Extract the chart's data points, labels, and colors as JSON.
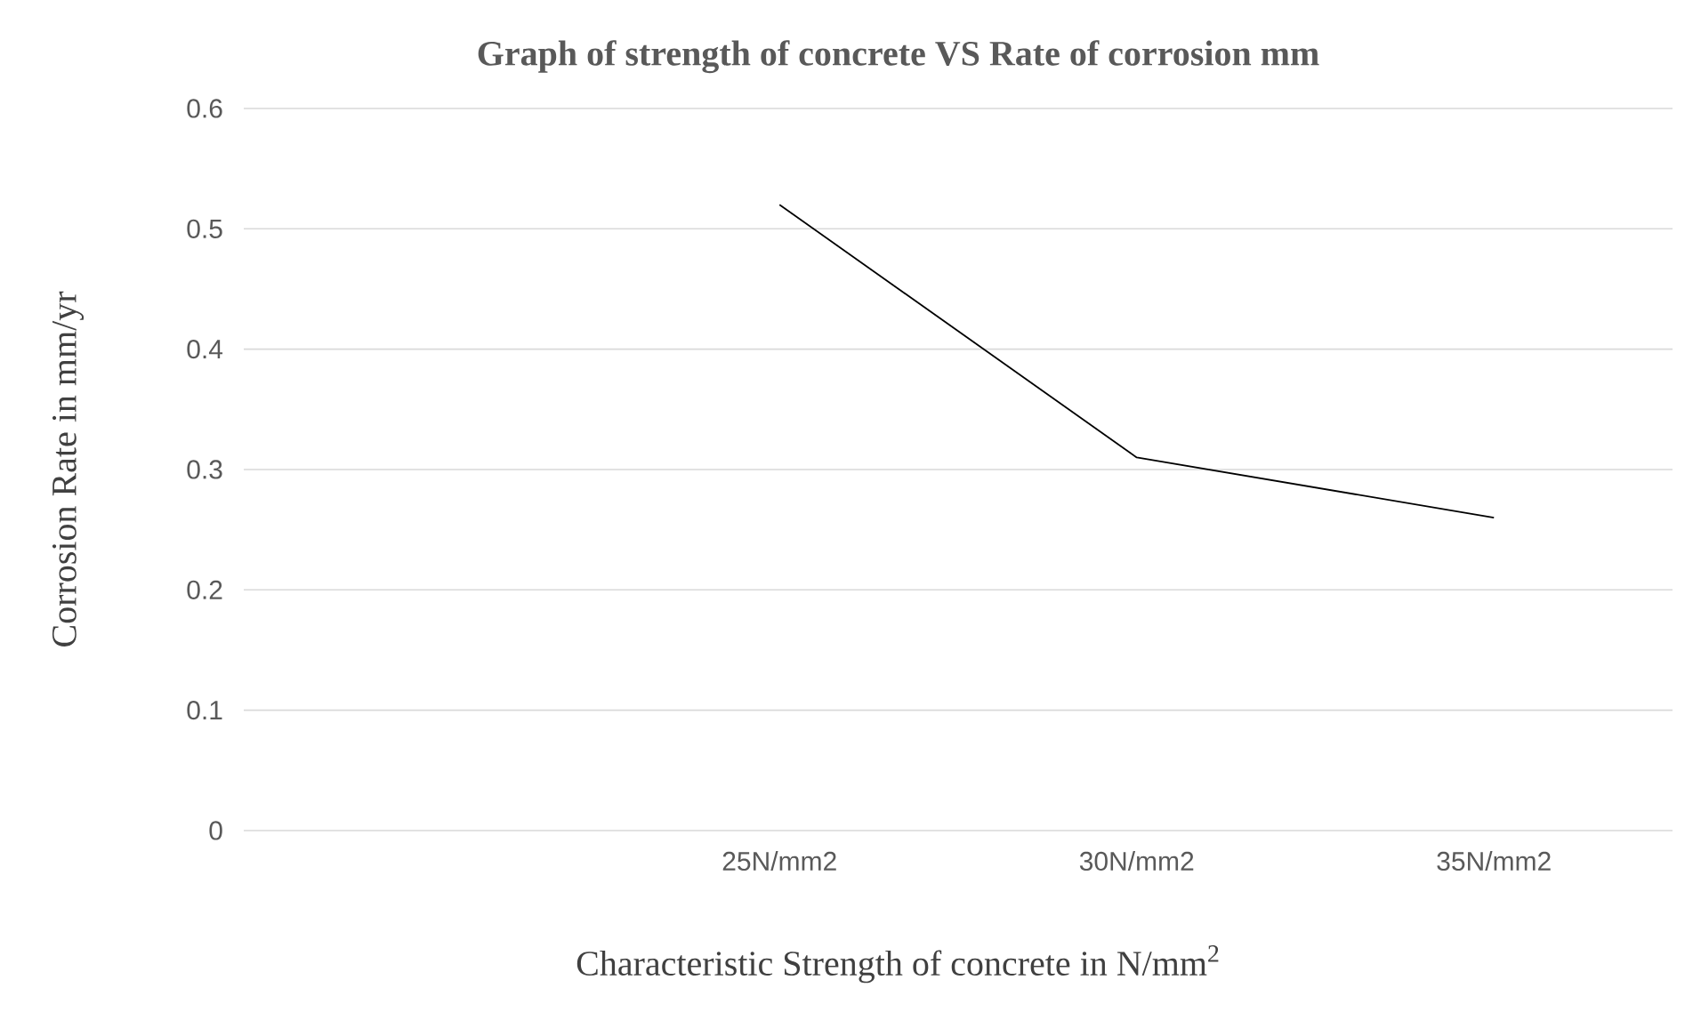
{
  "chart_data": {
    "type": "line",
    "title": "Graph of  strength of concrete VS Rate of corrosion mm",
    "xlabel": "Characteristic Strength of concrete in N/mm$^{2}$",
    "ylabel": "Corrosion Rate in mm/yr",
    "categories": [
      null,
      "25N/mm2",
      "30N/mm2",
      "35N/mm2"
    ],
    "series": [
      {
        "color": "#000000",
        "values": [
          null,
          0.52,
          0.31,
          0.26
        ]
      }
    ],
    "ylim": [
      0,
      0.6
    ],
    "yticks": [
      0,
      0.1,
      0.2,
      0.3,
      0.4,
      0.5,
      0.6
    ],
    "grid": "y"
  }
}
